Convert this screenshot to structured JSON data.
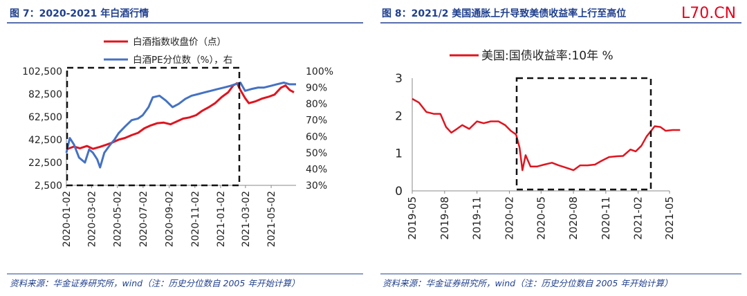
{
  "figures": [
    {
      "title": "图 7：2020-2021 年白酒行情",
      "source": "资料来源：华金证券研究所，wind（注：历史分位数自 2005 年开始计算）"
    },
    {
      "title": "图 8：2021/2 美国通胀上升导致美债收益率上行至高位",
      "source": "资料来源：华金证券研究所，wind（注：历史分位数自 2005 年开始计算）"
    }
  ],
  "watermark": "L70.CN",
  "colors": {
    "red": "#e0141e",
    "blue": "#4472c4",
    "title": "#1f3f8f",
    "divider": "#1f3f8f"
  },
  "chart_data": [
    {
      "type": "line",
      "x_tick_labels": [
        "2020-01-02",
        "2020-03-02",
        "2020-05-02",
        "2020-07-02",
        "2020-09-02",
        "2020-11-02",
        "2021-01-02",
        "2021-03-02",
        "2021-05-02"
      ],
      "x_range": [
        "2020-01-02",
        "2021-06-30"
      ],
      "y_left": {
        "range": [
          2500,
          102500
        ],
        "ticks": [
          "102,500",
          "82,500",
          "62,500",
          "42,500",
          "22,500",
          "2,500"
        ]
      },
      "y_right": {
        "range": [
          30,
          100
        ],
        "ticks": [
          "100%",
          "90%",
          "80%",
          "70%",
          "60%",
          "50%",
          "40%",
          "30%"
        ]
      },
      "legend_position": "top-center",
      "series": [
        {
          "name": "白酒指数收盘价（点）",
          "axis": "left",
          "color": "#e0141e",
          "x": [
            "2020-01-02",
            "2020-01-20",
            "2020-02-03",
            "2020-02-20",
            "2020-03-05",
            "2020-03-20",
            "2020-04-05",
            "2020-04-20",
            "2020-05-05",
            "2020-05-20",
            "2020-06-05",
            "2020-06-20",
            "2020-07-05",
            "2020-07-20",
            "2020-08-05",
            "2020-08-20",
            "2020-09-05",
            "2020-09-20",
            "2020-10-05",
            "2020-10-20",
            "2020-11-05",
            "2020-11-20",
            "2020-12-05",
            "2020-12-20",
            "2021-01-05",
            "2021-01-20",
            "2021-02-01",
            "2021-02-10",
            "2021-02-18",
            "2021-03-01",
            "2021-03-10",
            "2021-03-25",
            "2021-04-10",
            "2021-04-25",
            "2021-05-10",
            "2021-05-25",
            "2021-06-05",
            "2021-06-15",
            "2021-06-25"
          ],
          "y": [
            34000,
            36500,
            35000,
            37000,
            34500,
            36000,
            38000,
            40000,
            42500,
            44000,
            46500,
            48500,
            52500,
            55000,
            57000,
            57500,
            56000,
            58500,
            61000,
            62000,
            64000,
            68000,
            71000,
            74500,
            80000,
            84000,
            90000,
            92000,
            86000,
            79000,
            74500,
            76000,
            78500,
            80000,
            82000,
            88000,
            90000,
            86000,
            84000
          ]
        },
        {
          "name": "白酒PE分位数（%），右",
          "axis": "right",
          "color": "#4472c4",
          "x": [
            "2020-01-02",
            "2020-01-10",
            "2020-01-20",
            "2020-02-01",
            "2020-02-15",
            "2020-02-25",
            "2020-03-05",
            "2020-03-15",
            "2020-03-22",
            "2020-04-01",
            "2020-04-15",
            "2020-04-25",
            "2020-05-05",
            "2020-05-20",
            "2020-06-05",
            "2020-06-20",
            "2020-07-01",
            "2020-07-15",
            "2020-07-25",
            "2020-08-10",
            "2020-08-25",
            "2020-09-10",
            "2020-09-25",
            "2020-10-10",
            "2020-10-25",
            "2020-11-10",
            "2020-11-25",
            "2020-12-10",
            "2020-12-25",
            "2021-01-10",
            "2021-01-25",
            "2021-02-05",
            "2021-02-18",
            "2021-03-01",
            "2021-03-15",
            "2021-04-01",
            "2021-04-15",
            "2021-05-01",
            "2021-05-15",
            "2021-06-01",
            "2021-06-15",
            "2021-06-30"
          ],
          "y": [
            50,
            59,
            55,
            47,
            44,
            52,
            50,
            46,
            41,
            50,
            55,
            58,
            62,
            66,
            70,
            71,
            73,
            78,
            84,
            85,
            82,
            78,
            80,
            83,
            85,
            86,
            87,
            88,
            89,
            90,
            91,
            92,
            93,
            88,
            89,
            90,
            90,
            91,
            92,
            93,
            92,
            92
          ]
        }
      ]
    },
    {
      "type": "line",
      "x_tick_labels": [
        "2019-05",
        "2019-08",
        "2019-11",
        "2020-02",
        "2020-05",
        "2020-08",
        "2020-11",
        "2021-02",
        "2021-05"
      ],
      "x_range": [
        "2019-05",
        "2021-05"
      ],
      "y": {
        "range": [
          0,
          3
        ],
        "ticks": [
          "3",
          "2",
          "1",
          "0"
        ]
      },
      "legend_position": "top-center",
      "series": [
        {
          "name": "美国:国债收益率:10年 %",
          "color": "#e0141e",
          "x": [
            "2019-05-01",
            "2019-05-20",
            "2019-06-10",
            "2019-07-01",
            "2019-07-20",
            "2019-08-05",
            "2019-08-20",
            "2019-09-05",
            "2019-09-20",
            "2019-10-10",
            "2019-11-01",
            "2019-11-20",
            "2019-12-10",
            "2020-01-01",
            "2020-01-20",
            "2020-02-05",
            "2020-02-20",
            "2020-03-01",
            "2020-03-09",
            "2020-03-18",
            "2020-04-01",
            "2020-04-20",
            "2020-05-10",
            "2020-06-01",
            "2020-06-20",
            "2020-07-10",
            "2020-08-01",
            "2020-08-20",
            "2020-09-10",
            "2020-10-01",
            "2020-10-20",
            "2020-11-10",
            "2020-12-01",
            "2020-12-20",
            "2021-01-10",
            "2021-01-25",
            "2021-02-10",
            "2021-02-25",
            "2021-03-10",
            "2021-03-20",
            "2021-04-05",
            "2021-04-20",
            "2021-05-10",
            "2021-05-31"
          ],
          "y": [
            2.45,
            2.35,
            2.1,
            2.05,
            2.05,
            1.7,
            1.55,
            1.65,
            1.75,
            1.65,
            1.85,
            1.8,
            1.85,
            1.85,
            1.75,
            1.6,
            1.5,
            1.15,
            0.55,
            0.95,
            0.65,
            0.65,
            0.7,
            0.75,
            0.68,
            0.62,
            0.55,
            0.68,
            0.68,
            0.7,
            0.8,
            0.9,
            0.92,
            0.93,
            1.1,
            1.05,
            1.2,
            1.45,
            1.6,
            1.72,
            1.7,
            1.6,
            1.62,
            1.62
          ]
        }
      ]
    }
  ]
}
